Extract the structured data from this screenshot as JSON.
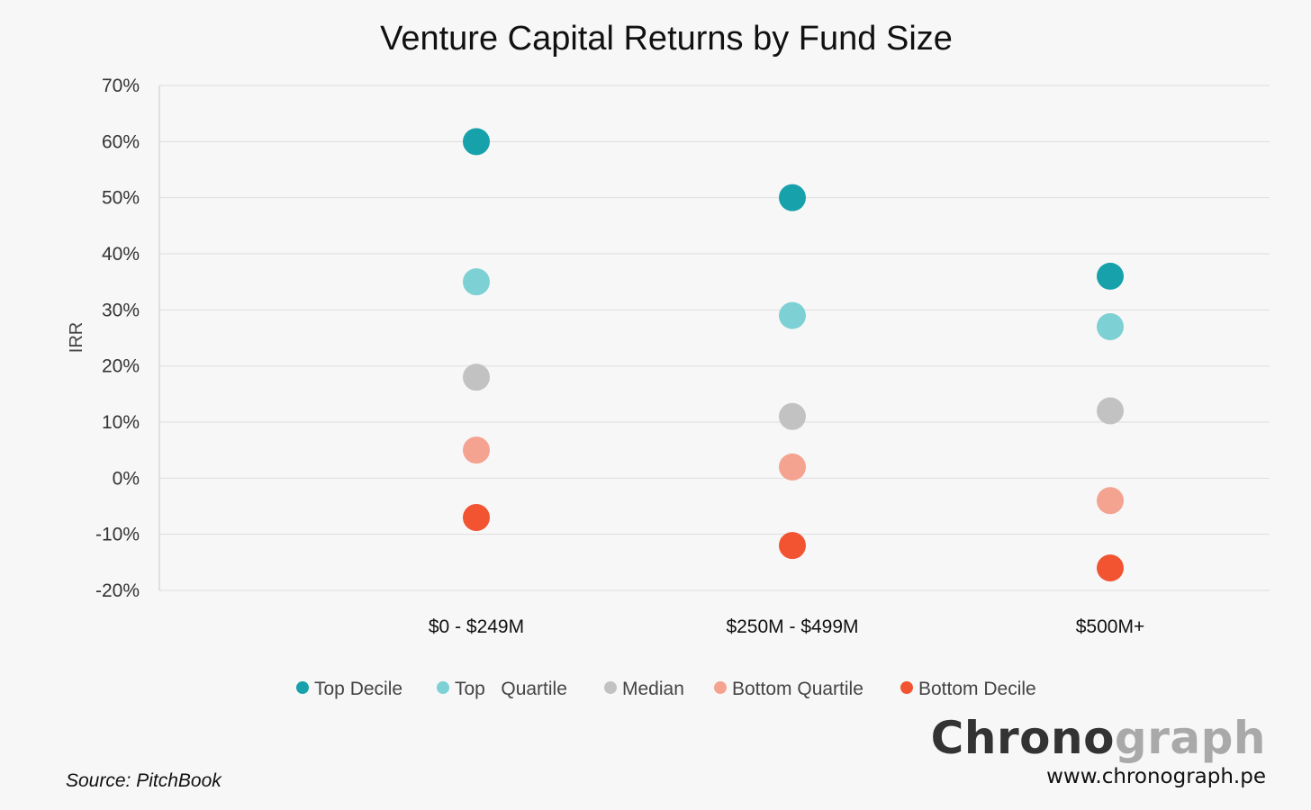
{
  "chart_data": {
    "type": "scatter",
    "title": "Venture Capital Returns by Fund Size",
    "ylabel": "IRR",
    "xlabel": "",
    "ylim": [
      -20,
      70
    ],
    "yticks": [
      "70%",
      "60%",
      "50%",
      "40%",
      "30%",
      "20%",
      "10%",
      "0%",
      "-10%",
      "-20%"
    ],
    "ytick_values": [
      70,
      60,
      50,
      40,
      30,
      20,
      10,
      0,
      -10,
      -20
    ],
    "categories": [
      "$0 - $249M",
      "$250M - $499M",
      "$500M+"
    ],
    "grid": true,
    "legend_position": "bottom",
    "series": [
      {
        "name": "Top Decile",
        "color": "#17a2ab",
        "values": [
          60,
          50,
          36
        ]
      },
      {
        "name": "Top   Quartile",
        "color": "#7dd0d4",
        "values": [
          35,
          29,
          27
        ]
      },
      {
        "name": "Median",
        "color": "#c2c2c2",
        "values": [
          18,
          11,
          12
        ]
      },
      {
        "name": "Bottom Quartile",
        "color": "#f4a391",
        "values": [
          5,
          2,
          -4
        ]
      },
      {
        "name": "Bottom Decile",
        "color": "#f25432",
        "values": [
          -7,
          -12,
          -16
        ]
      }
    ]
  },
  "footer": {
    "source": "Source: PitchBook",
    "brand_part1": "Chrono",
    "brand_part2": "graph",
    "brand_url": "www.chronograph.pe"
  }
}
